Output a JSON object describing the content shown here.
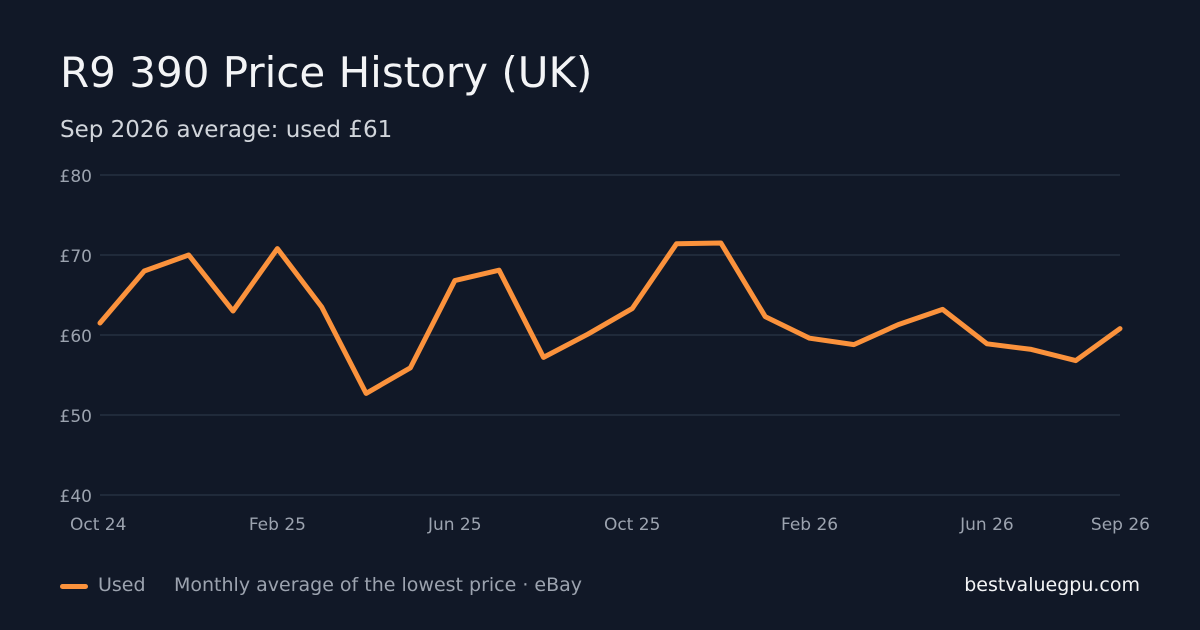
{
  "header": {
    "title": "R9 390 Price History (UK)",
    "subtitle": "Sep 2026 average: used £61"
  },
  "footer": {
    "legend_label": "Used",
    "source_note": "Monthly average of the lowest price · eBay",
    "brand": "bestvaluegpu.com"
  },
  "colors": {
    "background": "#111827",
    "line": "#fb923c",
    "grid": "#263041",
    "tick_text": "#9ca3af"
  },
  "chart_data": {
    "type": "line",
    "title": "R9 390 Price History (UK)",
    "subtitle": "Sep 2026 average: used £61",
    "x": [
      "2024-10",
      "2024-11",
      "2024-12",
      "2025-01",
      "2025-02",
      "2025-03",
      "2025-04",
      "2025-05",
      "2025-06",
      "2025-07",
      "2025-08",
      "2025-09",
      "2025-10",
      "2025-11",
      "2025-12",
      "2026-01",
      "2026-02",
      "2026-03",
      "2026-04",
      "2026-05",
      "2026-06",
      "2026-07",
      "2026-08",
      "2026-09"
    ],
    "x_tick_labels": [
      {
        "x": "2024-10",
        "label": "Oct 24"
      },
      {
        "x": "2025-02",
        "label": "Feb 25"
      },
      {
        "x": "2025-06",
        "label": "Jun 25"
      },
      {
        "x": "2025-10",
        "label": "Oct 25"
      },
      {
        "x": "2026-02",
        "label": "Feb 26"
      },
      {
        "x": "2026-06",
        "label": "Jun 26"
      },
      {
        "x": "2026-09",
        "label": "Sep 26"
      }
    ],
    "series": [
      {
        "name": "Used",
        "color": "#fb923c",
        "values": [
          61.5,
          68,
          70,
          63,
          70.8,
          63.5,
          52.7,
          55.9,
          66.8,
          68.1,
          57.2,
          60.1,
          63.3,
          71.4,
          71.5,
          62.3,
          59.6,
          58.8,
          61.3,
          63.2,
          58.9,
          58.2,
          56.8,
          60.8
        ]
      }
    ],
    "y_ticks": [
      40,
      50,
      60,
      70,
      80
    ],
    "y_tick_labels": [
      "£40",
      "£50",
      "£60",
      "£70",
      "£80"
    ],
    "ylim": [
      40,
      80
    ],
    "grid": "horizontal",
    "legend": "bottom-left"
  }
}
